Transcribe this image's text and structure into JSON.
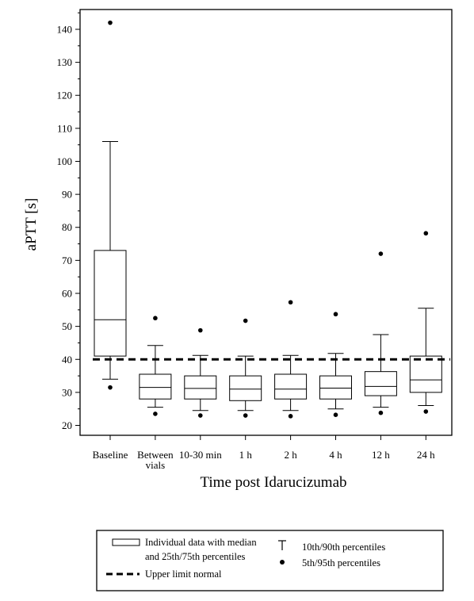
{
  "chart_data": {
    "type": "box",
    "title": "",
    "xlabel": "Time post Idarucizumab",
    "ylabel": "aPTT [s]",
    "ylim": [
      17,
      146
    ],
    "yticks": [
      20,
      30,
      40,
      50,
      60,
      70,
      80,
      90,
      100,
      110,
      120,
      130,
      140
    ],
    "upper_limit_normal": 40,
    "categories": [
      "Baseline",
      "Between vials",
      "10-30 min",
      "1 h",
      "2 h",
      "4 h",
      "12 h",
      "24 h"
    ],
    "category_label_lines": [
      [
        "Baseline"
      ],
      [
        "Between",
        "vials"
      ],
      [
        "10-30 min"
      ],
      [
        "1 h"
      ],
      [
        "2 h"
      ],
      [
        "4 h"
      ],
      [
        "12 h"
      ],
      [
        "24 h"
      ]
    ],
    "boxes": [
      {
        "p5": 31.5,
        "p10": 34,
        "q1": 41,
        "median": 52,
        "q3": 73,
        "p90": 106,
        "p95": 142
      },
      {
        "p5": 23.5,
        "p10": 25.5,
        "q1": 28,
        "median": 31.5,
        "q3": 35.5,
        "p90": 44.2,
        "p95": 52.5
      },
      {
        "p5": 23,
        "p10": 24.5,
        "q1": 28,
        "median": 31.2,
        "q3": 35,
        "p90": 41.2,
        "p95": 48.8
      },
      {
        "p5": 23,
        "p10": 24.5,
        "q1": 27.5,
        "median": 31,
        "q3": 35,
        "p90": 41,
        "p95": 51.7
      },
      {
        "p5": 22.8,
        "p10": 24.5,
        "q1": 28,
        "median": 31,
        "q3": 35.5,
        "p90": 41.2,
        "p95": 57.3
      },
      {
        "p5": 23.2,
        "p10": 25,
        "q1": 28,
        "median": 31.3,
        "q3": 35,
        "p90": 41.8,
        "p95": 53.7
      },
      {
        "p5": 23.8,
        "p10": 25.5,
        "q1": 29,
        "median": 31.8,
        "q3": 36.3,
        "p90": 47.5,
        "p95": 72
      },
      {
        "p5": 24.2,
        "p10": 26,
        "q1": 30,
        "median": 33.8,
        "q3": 41,
        "p90": 55.5,
        "p95": 78.2
      }
    ],
    "legend": {
      "position": "bottom",
      "box_label_lines": [
        "Individual data with median",
        "and 25th/75th percentiles"
      ],
      "whisker_label": "10th/90th percentiles",
      "dot_label": "5th/95th percentiles",
      "line_label": "Upper limit normal"
    }
  }
}
